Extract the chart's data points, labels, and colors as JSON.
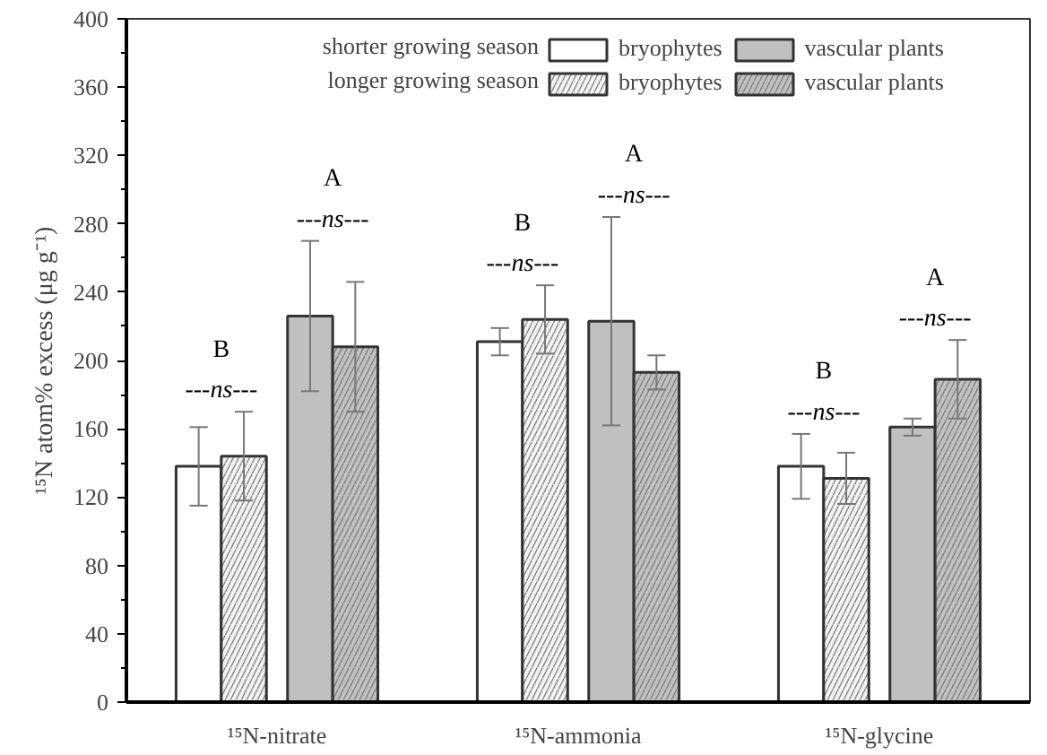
{
  "chart_data": {
    "type": "bar",
    "ylabel": "¹⁵N atom% excess (μg g⁻¹)",
    "categories": [
      "¹⁵N-nitrate",
      "¹⁵N-ammonia",
      "¹⁵N-glycine"
    ],
    "series": [
      {
        "name": "bryophytes",
        "color": "#ffffff",
        "values": [
          138,
          211,
          138
        ],
        "errors": [
          23,
          8,
          19
        ]
      },
      {
        "name": "bryophytes",
        "color": "#f2f2f2",
        "values": [
          144,
          224,
          131
        ],
        "errors": [
          26,
          20,
          15
        ]
      },
      {
        "name": "vascular plants",
        "color": "#c0c0c0",
        "values": [
          226,
          223,
          161
        ],
        "errors": [
          44,
          61,
          5
        ]
      },
      {
        "name": "vascular plants",
        "color": "#c0c0c0",
        "values": [
          208,
          193,
          189
        ],
        "errors": [
          38,
          10,
          23
        ]
      }
    ],
    "ylim": [
      0,
      400
    ],
    "yticks": [
      0,
      40,
      80,
      120,
      160,
      200,
      240,
      280,
      320,
      360,
      400
    ],
    "grid": false,
    "legend": "top right",
    "annotations": [
      "shorter growing season",
      "longer growing season",
      "B",
      "---ns---",
      "A",
      "---ns---",
      "B",
      "---ns---",
      "A",
      "---ns---",
      "B",
      "---ns---",
      "A",
      "---ns---"
    ]
  }
}
